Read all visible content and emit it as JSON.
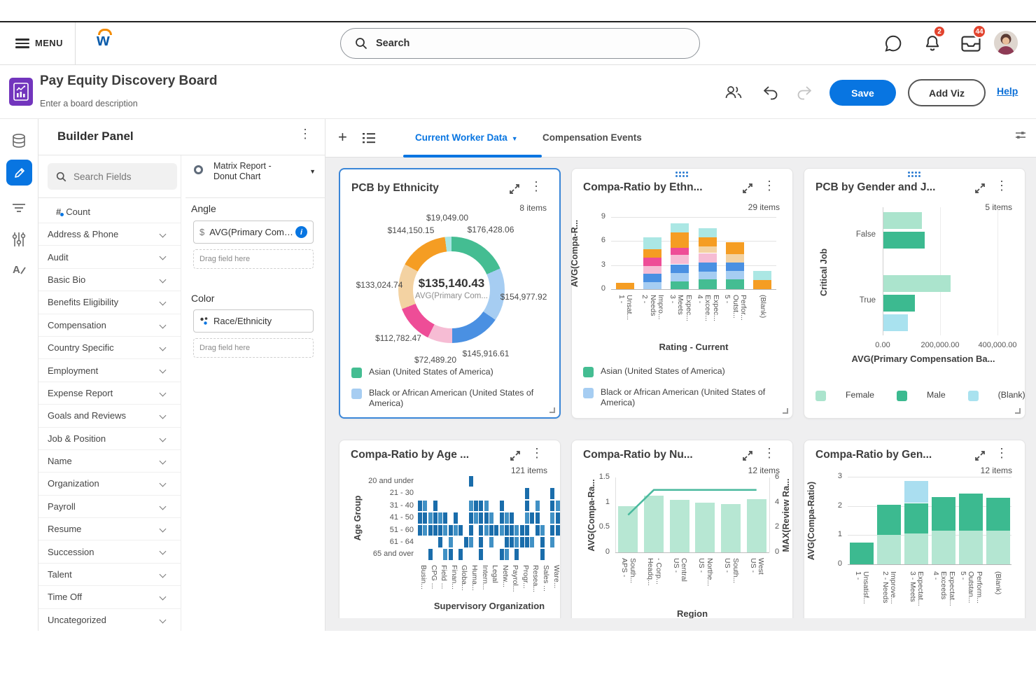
{
  "topbar": {
    "menu_label": "MENU",
    "search_placeholder": "Search",
    "notif_badge": "2",
    "inbox_badge": "44"
  },
  "header": {
    "title": "Pay Equity Discovery Board",
    "subtitle": "Enter a board description",
    "save_label": "Save",
    "add_viz_label": "Add Viz",
    "help_label": "Help"
  },
  "builder": {
    "title": "Builder Panel",
    "search_placeholder": "Search Fields",
    "count_field": "Count",
    "field_groups": [
      "Address & Phone",
      "Audit",
      "Basic Bio",
      "Benefits Eligibility",
      "Compensation",
      "Country Specific",
      "Employment",
      "Expense Report",
      "Goals and Reviews",
      "Job & Position",
      "Name",
      "Organization",
      "Payroll",
      "Resume",
      "Succession",
      "Talent",
      "Time Off",
      "Uncategorized"
    ],
    "chart_type_line1": "Matrix Report -",
    "chart_type_line2": "Donut Chart",
    "angle_label": "Angle",
    "angle_field": "AVG(Primary Compe...",
    "drag_placeholder": "Drag field here",
    "color_label": "Color",
    "color_field": "Race/Ethnicity"
  },
  "tabs": {
    "active": "Current Worker Data",
    "inactive": "Compensation Events"
  },
  "accent_color": "#0875e1",
  "badge_color": "#e2432e",
  "chart_data": [
    {
      "type": "pie",
      "title": "PCB by Ethnicity",
      "items": "8 items",
      "center_value": "$135,140.43",
      "center_label": "AVG(Primary Com...",
      "slices": [
        {
          "label": "$176,428.06",
          "value": 176428.06,
          "color": "#44bd92"
        },
        {
          "label": "$154,977.92",
          "value": 154977.92,
          "color": "#a6cdf2"
        },
        {
          "label": "$145,916.61",
          "value": 145916.61,
          "color": "#4a90e2"
        },
        {
          "label": "$72,489.20",
          "value": 72489.2,
          "color": "#f6bcd4"
        },
        {
          "label": "$112,782.47",
          "value": 112782.47,
          "color": "#ee4d97"
        },
        {
          "label": "$133,024.74",
          "value": 133024.74,
          "color": "#f3d2a2"
        },
        {
          "label": "$144,150.15",
          "value": 144150.15,
          "color": "#f59d23"
        },
        {
          "label": "$19,049.00",
          "value": 19049.0,
          "color": "#a9e6e3"
        }
      ],
      "legend": [
        {
          "label": "Asian (United States of America)",
          "color": "#44bd92"
        },
        {
          "label": "Black or African American (United States of America)",
          "color": "#a6cdf2"
        }
      ]
    },
    {
      "type": "bar",
      "stacked": true,
      "title": "Compa-Ratio by Ethn...",
      "items": "29 items",
      "ylabel": "AVG(Compa-R...",
      "xlabel": "Rating - Current",
      "yticks": [
        0,
        3,
        6,
        9
      ],
      "ylim": [
        0,
        9
      ],
      "categories": [
        [
          "1 -",
          "Unsat..."
        ],
        [
          "2 -",
          "Needs",
          "Impro..."
        ],
        [
          "3 -",
          "Meets",
          "Expec..."
        ],
        [
          "4 -",
          "Excee...",
          "Expec..."
        ],
        [
          "5 -",
          "Outst...",
          "Perfor..."
        ],
        [
          "(Blank)"
        ]
      ],
      "palette": {
        "green": "#44bd92",
        "lightblue": "#a6cdf2",
        "blue": "#4a90e2",
        "lightpink": "#f6bcd4",
        "magenta": "#ee4d97",
        "tan": "#f3d2a2",
        "orange": "#f59d23",
        "cyan": "#abe7e4"
      },
      "series": [
        [
          {
            "c": "orange",
            "v": 0.8
          }
        ],
        [
          {
            "c": "lightblue",
            "v": 0.85
          },
          {
            "c": "blue",
            "v": 1.1
          },
          {
            "c": "lightpink",
            "v": 0.95
          },
          {
            "c": "magenta",
            "v": 1.05
          },
          {
            "c": "orange",
            "v": 1.0
          },
          {
            "c": "cyan",
            "v": 1.5
          }
        ],
        [
          {
            "c": "green",
            "v": 1.0
          },
          {
            "c": "lightblue",
            "v": 1.05
          },
          {
            "c": "blue",
            "v": 1.05
          },
          {
            "c": "lightpink",
            "v": 1.2
          },
          {
            "c": "magenta",
            "v": 0.85
          },
          {
            "c": "orange",
            "v": 1.95
          },
          {
            "c": "cyan",
            "v": 1.1
          }
        ],
        [
          {
            "c": "green",
            "v": 1.2
          },
          {
            "c": "lightblue",
            "v": 1.0
          },
          {
            "c": "blue",
            "v": 1.1
          },
          {
            "c": "lightpink",
            "v": 1.2
          },
          {
            "c": "tan",
            "v": 0.8
          },
          {
            "c": "orange",
            "v": 1.2
          },
          {
            "c": "cyan",
            "v": 1.1
          }
        ],
        [
          {
            "c": "green",
            "v": 1.25
          },
          {
            "c": "lightblue",
            "v": 1.05
          },
          {
            "c": "blue",
            "v": 1.05
          },
          {
            "c": "tan",
            "v": 1.05
          },
          {
            "c": "orange",
            "v": 1.5
          }
        ],
        [
          {
            "c": "orange",
            "v": 1.15
          },
          {
            "c": "cyan",
            "v": 1.1
          }
        ]
      ],
      "legend": [
        {
          "label": "Asian (United States of America)",
          "color": "#44bd92"
        },
        {
          "label": "Black or African American (United States of America)",
          "color": "#a6cdf2"
        }
      ]
    },
    {
      "type": "bar-horizontal",
      "title": "PCB by Gender and J...",
      "items": "5 items",
      "ylabel": "Critical Job",
      "xlabel": "AVG(Primary Compensation Ba...",
      "xticks": [
        "0.00",
        "200,000.00",
        "400,000.00"
      ],
      "xlim": [
        0,
        400000
      ],
      "groups": [
        {
          "label": "False",
          "bars": [
            {
              "name": "Female",
              "value": 135000
            },
            {
              "name": "Male",
              "value": 145000
            }
          ]
        },
        {
          "label": "True",
          "bars": [
            {
              "name": "Female",
              "value": 235000
            },
            {
              "name": "Male",
              "value": 110000
            },
            {
              "name": "(Blank)",
              "value": 85000
            }
          ]
        }
      ],
      "legend": [
        {
          "label": "Female",
          "color": "#abe4cd"
        },
        {
          "label": "Male",
          "color": "#3cba90"
        },
        {
          "label": "(Blank)",
          "color": "#a9e2ef"
        }
      ]
    },
    {
      "type": "heatmap",
      "title": "Compa-Ratio by Age ...",
      "items": "121 items",
      "ylabel": "Age Group",
      "xlabel": "Supervisory Organization",
      "row_labels": [
        "20 and under",
        "21 - 30",
        "31 - 40",
        "41 - 50",
        "51 - 60",
        "61 - 64",
        "65 and over"
      ],
      "col_labels": [
        "Busin...",
        "CPG ...",
        "Field ...",
        "Finan...",
        "Globa...",
        "Huma...",
        "Intern...",
        "Legal",
        "Netw...",
        "Payrol...",
        "Progr...",
        "Resea...",
        "Sales ...",
        "Ware..."
      ],
      "cell_colors": [
        "#4191c5",
        "#1a6dab"
      ],
      "cells": [
        "0000000000200000000000000000",
        "0000000000000000000002000020",
        "2102000000122100200002010021",
        "2212120200212210212001220012",
        "2122212120202122122122021022",
        "0000201002102010022122102010",
        "0020012020002000210200002000"
      ]
    },
    {
      "type": "bar-line",
      "title": "Compa-Ratio by Nu...",
      "items": "12 items",
      "ylabel_left": "AVG(Compa-Ra...",
      "ylabel_right": "MAX(Review Ra...",
      "xlabel": "Region",
      "yticks_left": [
        "1.5",
        "1",
        "0.5",
        "0"
      ],
      "yticks_right": [
        "6",
        "4",
        "2",
        "0"
      ],
      "ylim_left": [
        0,
        1.5
      ],
      "ylim_right": [
        0,
        6
      ],
      "categories": [
        [
          "APS -",
          "South..."
        ],
        [
          "Headq...",
          "- Corp..."
        ],
        [
          "US -",
          "Central"
        ],
        [
          "US -",
          "Northe..."
        ],
        [
          "US -",
          "South..."
        ],
        [
          "US -",
          "West"
        ]
      ],
      "bars": [
        0.92,
        1.13,
        1.05,
        1.0,
        0.97,
        1.07
      ],
      "line": [
        3,
        5,
        5,
        5,
        5,
        5
      ],
      "bar_color": "#b7e7d3",
      "line_color": "#4ab99e"
    },
    {
      "type": "bar",
      "stacked": true,
      "title": "Compa-Ratio by Gen...",
      "items": "12 items",
      "ylabel": "AVG(Compa-Ratio)",
      "yticks": [
        0,
        1,
        2,
        3
      ],
      "ylim": [
        0,
        3
      ],
      "categories": [
        [
          "1 -",
          "Unsatisf..."
        ],
        [
          "2 - Needs",
          "Improve..."
        ],
        [
          "3 - Meets",
          "Expectat..."
        ],
        [
          "4 -",
          "Exceeds",
          "Expectat..."
        ],
        [
          "5 -",
          "Outstan...",
          "Perform..."
        ],
        [
          "(Blank)"
        ]
      ],
      "palette": {
        "mint": "#b4e6d2",
        "teal": "#3cba90",
        "cyan": "#aadef0"
      },
      "series": [
        [
          {
            "c": "teal",
            "v": 0.75
          }
        ],
        [
          {
            "c": "mint",
            "v": 1.0
          },
          {
            "c": "teal",
            "v": 1.05
          }
        ],
        [
          {
            "c": "mint",
            "v": 1.05
          },
          {
            "c": "teal",
            "v": 1.05
          },
          {
            "c": "cyan",
            "v": 0.75
          }
        ],
        [
          {
            "c": "mint",
            "v": 1.15
          },
          {
            "c": "teal",
            "v": 1.15
          }
        ],
        [
          {
            "c": "mint",
            "v": 1.15
          },
          {
            "c": "teal",
            "v": 1.28
          }
        ],
        [
          {
            "c": "mint",
            "v": 1.15
          },
          {
            "c": "teal",
            "v": 1.13
          }
        ]
      ]
    }
  ]
}
